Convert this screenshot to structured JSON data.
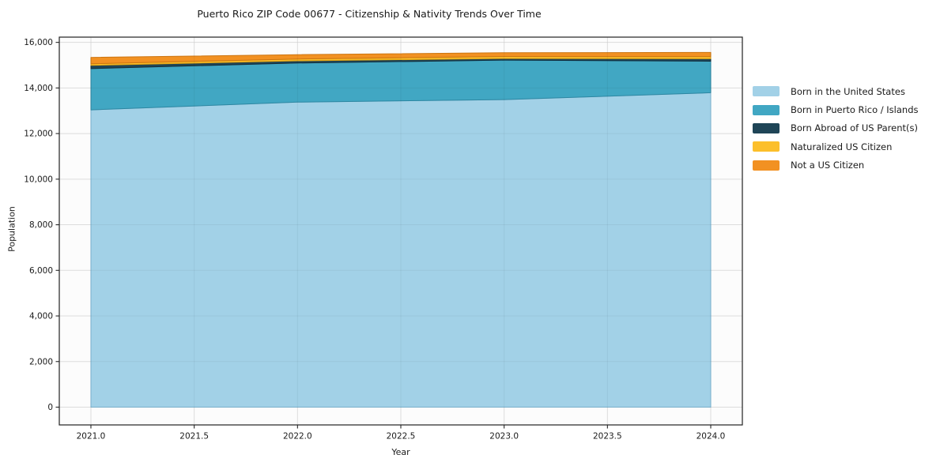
{
  "title": "Puerto Rico ZIP Code 00677 - Citizenship & Nativity Trends Over Time",
  "chart_data": {
    "type": "area",
    "stacked": true,
    "title": "Puerto Rico ZIP Code 00677 - Citizenship & Nativity Trends Over Time",
    "xlabel": "Year",
    "ylabel": "Population",
    "x": [
      2021,
      2022,
      2023,
      2024
    ],
    "series": [
      {
        "name": "Born in the United States",
        "color": "#a2d1e7",
        "edge_color": "#7fb9d6",
        "values": [
          13040,
          13380,
          13490,
          13790
        ]
      },
      {
        "name": "Born in Puerto Rico / Islands",
        "color": "#41a7c3",
        "edge_color": "#2d87a2",
        "values": [
          1810,
          1715,
          1730,
          1385
        ]
      },
      {
        "name": "Born Abroad of US Parent(s)",
        "color": "#1f4557",
        "edge_color": "#152f3c",
        "values": [
          140,
          95,
          70,
          105
        ]
      },
      {
        "name": "Naturalized US Citizen",
        "color": "#fcbf2b",
        "edge_color": "#db9e12",
        "values": [
          70,
          80,
          90,
          95
        ]
      },
      {
        "name": "Not a US Citizen",
        "color": "#f29122",
        "edge_color": "#cc7410",
        "values": [
          280,
          190,
          165,
          185
        ]
      }
    ],
    "totals": [
      15340,
      15460,
      15545,
      15560
    ],
    "x_ticks": {
      "values": [
        2021.0,
        2021.5,
        2022.0,
        2022.5,
        2023.0,
        2023.5,
        2024.0
      ],
      "labels": [
        "2021.0",
        "2021.5",
        "2022.0",
        "2022.5",
        "2023.0",
        "2023.5",
        "2024.0"
      ]
    },
    "y_ticks": {
      "values": [
        0,
        2000,
        4000,
        6000,
        8000,
        10000,
        12000,
        14000,
        16000
      ],
      "labels": [
        "0",
        "2,000",
        "4,000",
        "6,000",
        "8,000",
        "10,000",
        "12,000",
        "14,000",
        "16,000"
      ]
    },
    "xlim": [
      2020.847,
      2024.153
    ],
    "ylim": [
      -780,
      16230
    ],
    "grid": true,
    "legend_position": "right-outside",
    "colors": {
      "spine": "#222222",
      "tick": "#262626",
      "grid": "#e8e8e8",
      "plot_background": "#fcfcfc",
      "text": "#1a1a1a"
    }
  }
}
